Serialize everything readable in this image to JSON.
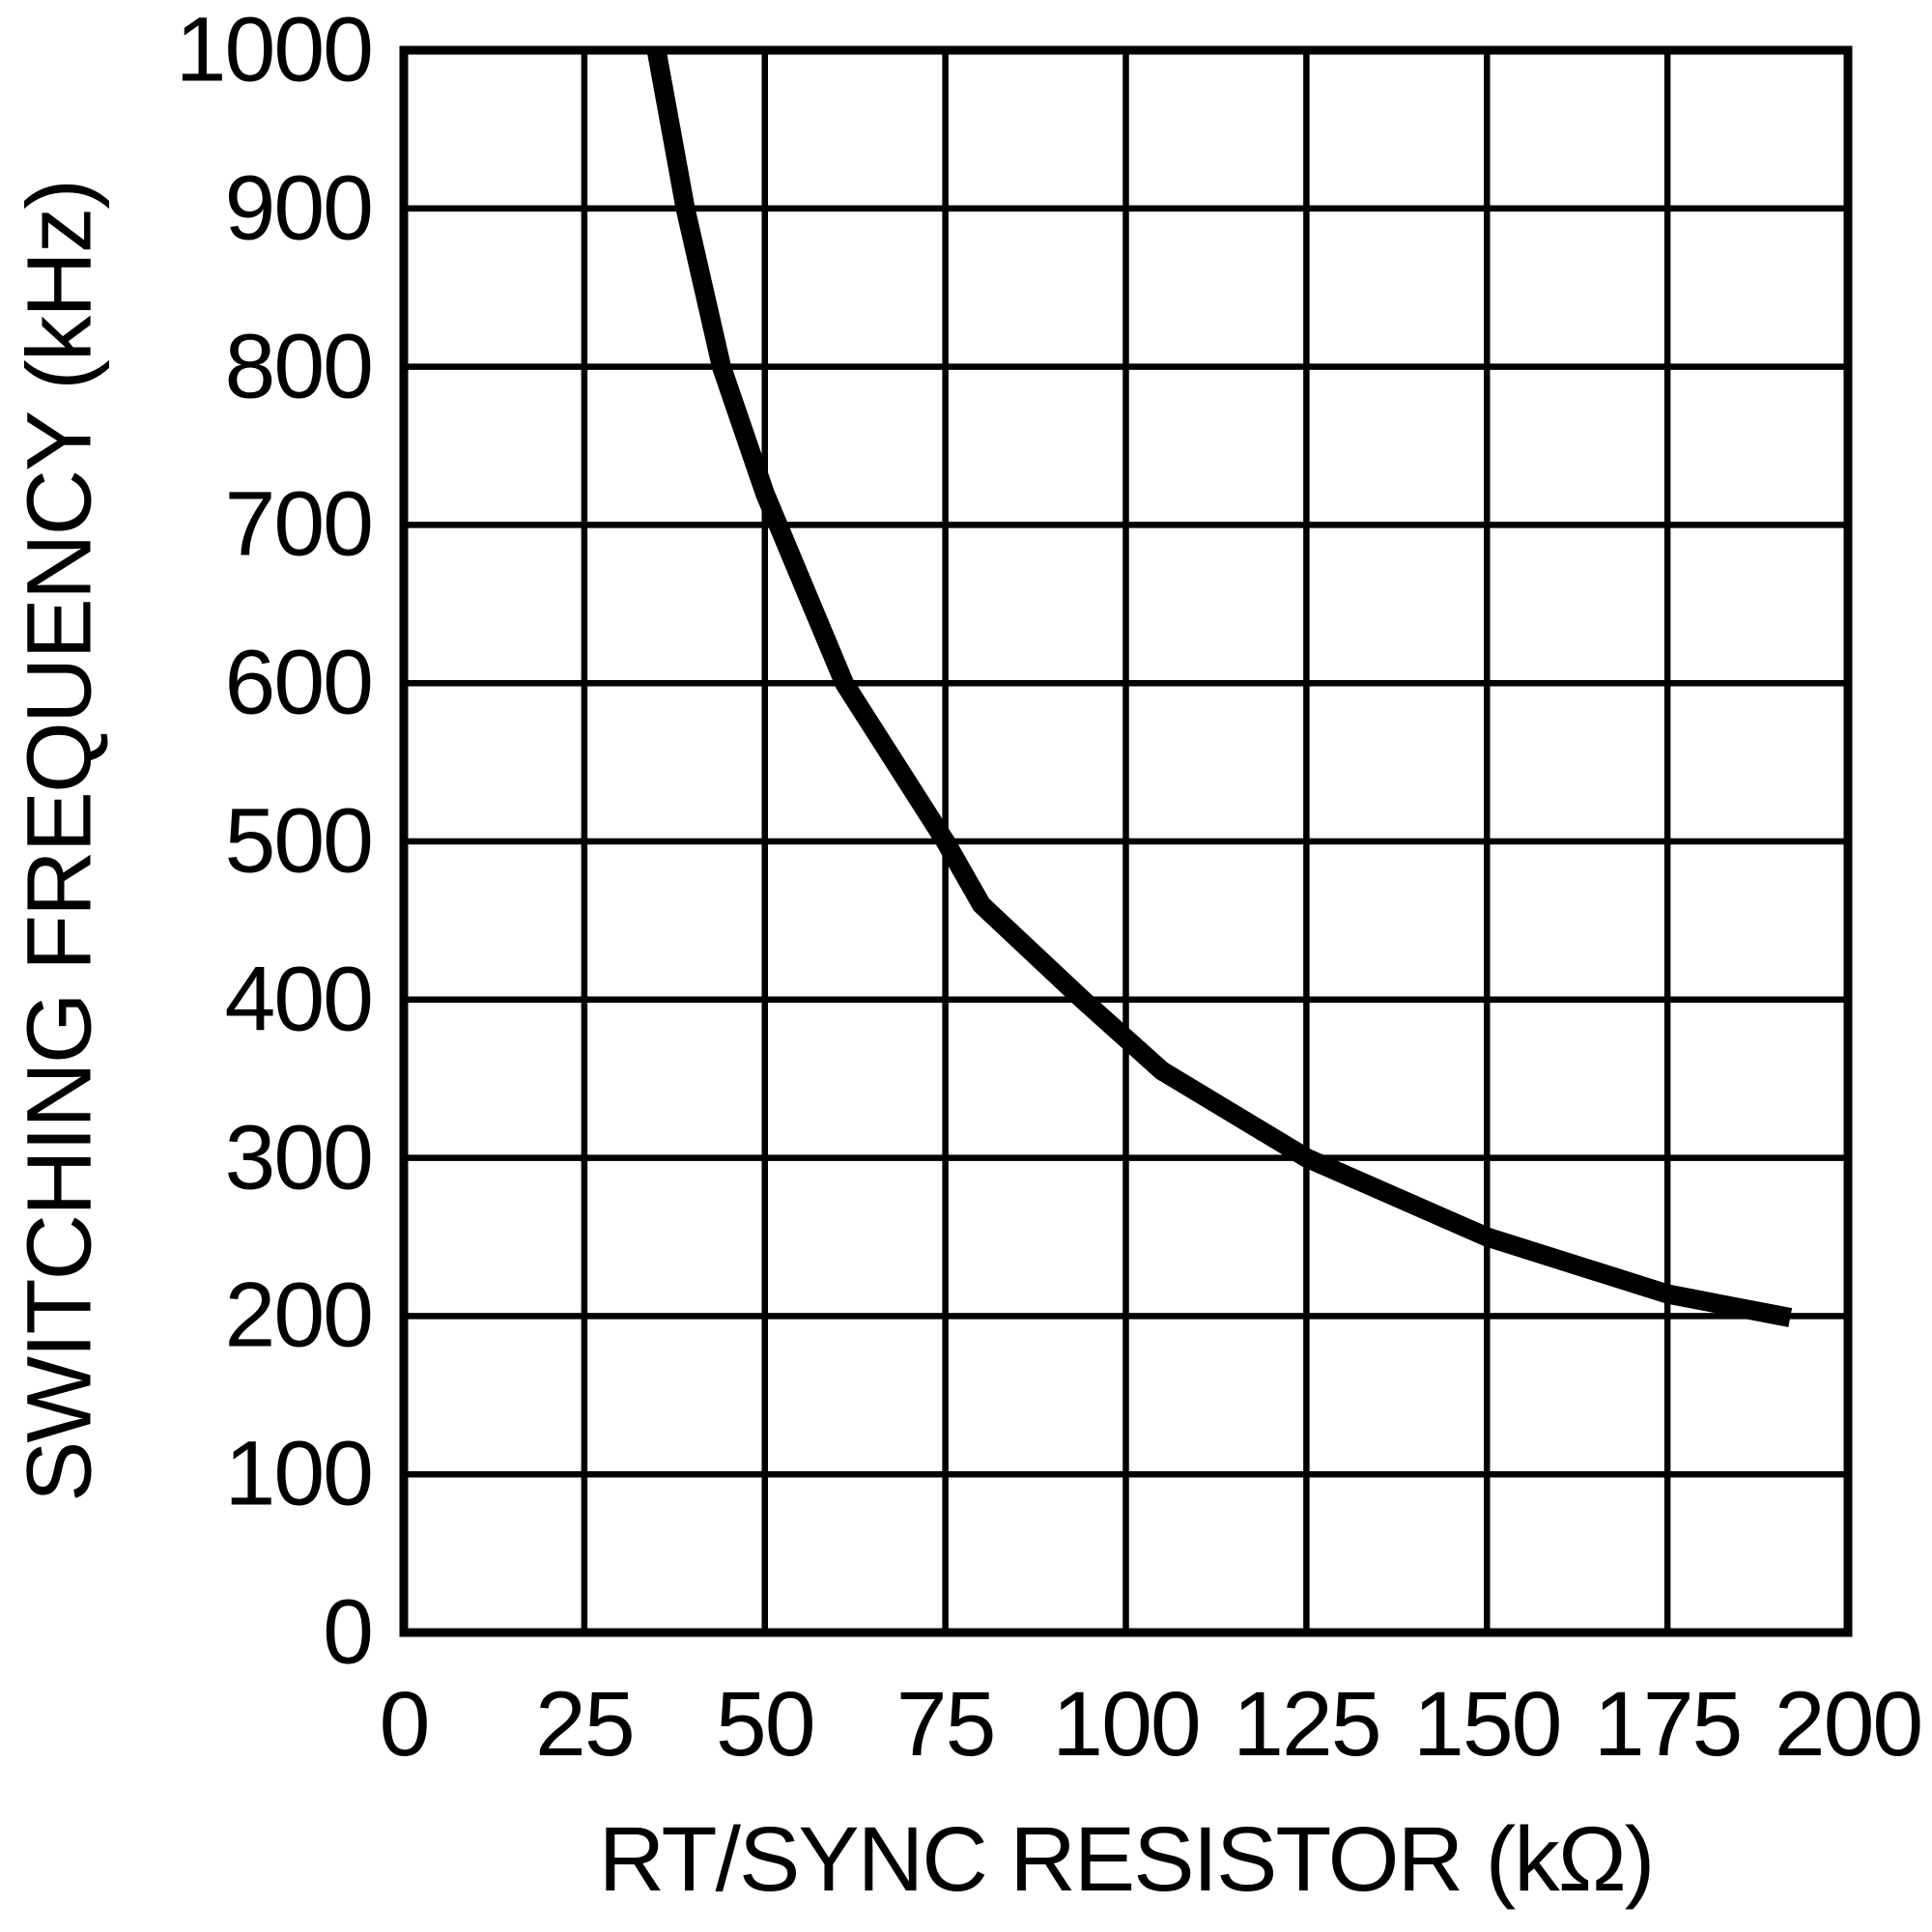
{
  "chart_data": {
    "type": "line",
    "title": "",
    "xlabel": "RT/SYNC RESISTOR (kΩ)",
    "ylabel": "SWITCHING FREQUENCY (kHz)",
    "xlim": [
      0,
      200
    ],
    "ylim": [
      0,
      1000
    ],
    "x_ticks": [
      0,
      25,
      50,
      75,
      100,
      125,
      150,
      175,
      200
    ],
    "y_ticks": [
      0,
      100,
      200,
      300,
      400,
      500,
      600,
      700,
      800,
      900,
      1000
    ],
    "grid": "on",
    "legend": "none",
    "line_color": "#000000",
    "grid_color": "#000000",
    "series": [
      {
        "name": "switching-frequency-vs-rt-sync-resistor",
        "points": [
          [
            35,
            1000
          ],
          [
            39,
            900
          ],
          [
            44,
            800
          ],
          [
            50,
            720
          ],
          [
            61,
            600
          ],
          [
            75,
            500
          ],
          [
            80,
            460
          ],
          [
            94,
            400
          ],
          [
            105,
            355
          ],
          [
            125,
            300
          ],
          [
            150,
            250
          ],
          [
            175,
            214
          ],
          [
            192,
            199
          ]
        ]
      }
    ]
  }
}
